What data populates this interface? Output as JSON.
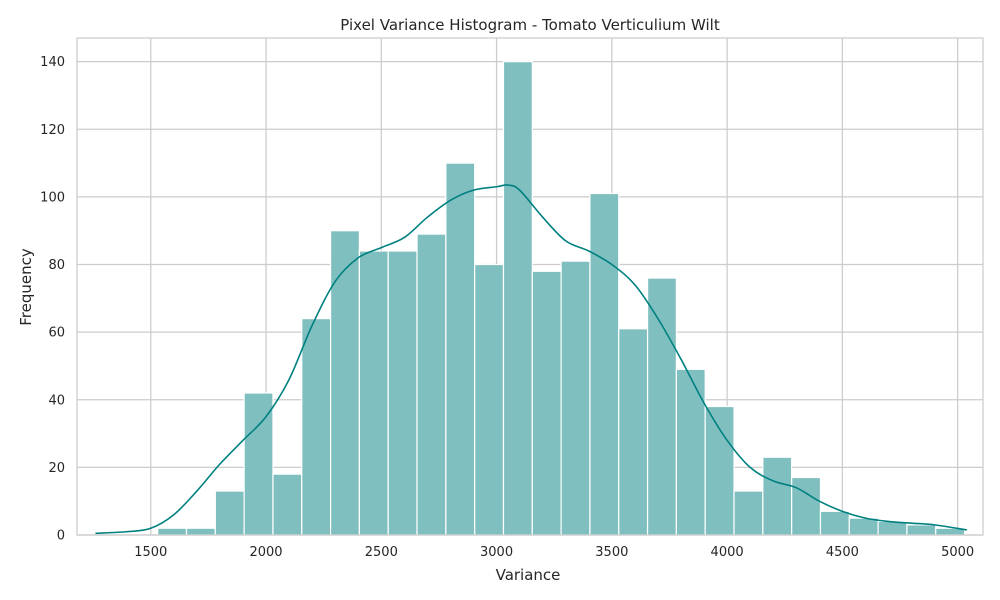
{
  "chart_data": {
    "type": "bar",
    "title": "Pixel Variance Histogram - Tomato Verticulium Wilt",
    "xlabel": "Variance",
    "ylabel": "Frequency",
    "xlim": [
      1180,
      5110
    ],
    "ylim": [
      0,
      147
    ],
    "xticks": [
      1500,
      2000,
      2500,
      3000,
      3500,
      4000,
      4500,
      5000
    ],
    "yticks": [
      0,
      20,
      40,
      60,
      80,
      100,
      120,
      140
    ],
    "grid": true,
    "bin_edges": [
      1530,
      1655,
      1780,
      1905,
      2030,
      2155,
      2280,
      2405,
      2530,
      2655,
      2780,
      2905,
      3030,
      3155,
      3280,
      3405,
      3530,
      3655,
      3780,
      3905,
      4030,
      4155,
      4280,
      4405,
      4530,
      4655,
      4780,
      4905,
      5030
    ],
    "counts": [
      2,
      2,
      13,
      42,
      18,
      64,
      90,
      84,
      84,
      89,
      110,
      80,
      140,
      78,
      81,
      101,
      61,
      76,
      49,
      38,
      13,
      23,
      17,
      7,
      5,
      4,
      3,
      2
    ],
    "kde": {
      "x": [
        1260,
        1400,
        1500,
        1600,
        1700,
        1800,
        1900,
        2000,
        2100,
        2200,
        2300,
        2400,
        2500,
        2600,
        2700,
        2800,
        2900,
        3000,
        3050,
        3100,
        3200,
        3300,
        3400,
        3500,
        3600,
        3700,
        3800,
        3900,
        4000,
        4100,
        4200,
        4300,
        4400,
        4500,
        4600,
        4700,
        4800,
        4900,
        5040
      ],
      "y": [
        0.5,
        1,
        2,
        6,
        13,
        21,
        28,
        35,
        46,
        62,
        75,
        82,
        85,
        88,
        94,
        99,
        102,
        103,
        103.5,
        102,
        94,
        87,
        84,
        80,
        74,
        64,
        52,
        39,
        28,
        20,
        16,
        14,
        10,
        7,
        5,
        4,
        3.5,
        3,
        1.5
      ]
    },
    "colors": {
      "bar_fill": "#7fbfbf",
      "bar_edge": "#ffffff",
      "kde_line": "#008080",
      "grid": "#cccccc",
      "text": "#262626"
    }
  }
}
